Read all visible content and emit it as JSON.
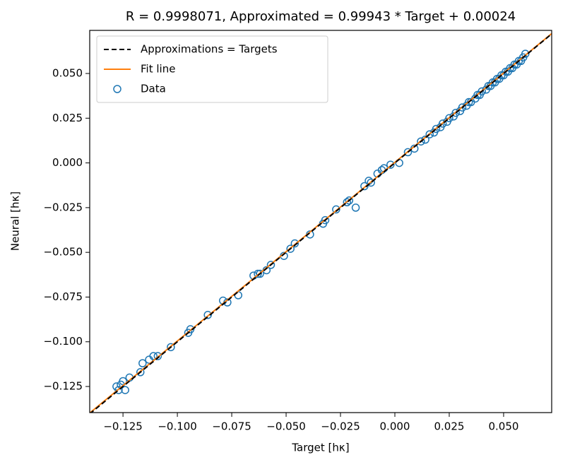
{
  "chart_data": {
    "type": "scatter",
    "title": "R = 0.9998071, Approximated = 0.99943 * Target + 0.00024",
    "xlabel": "Target [hκ]",
    "ylabel": "Neural [hκ]",
    "xlim": [
      -0.1403,
      0.0721
    ],
    "ylim": [
      -0.1396,
      0.0741
    ],
    "xticks": [
      {
        "value": -0.125,
        "label": "−0.125"
      },
      {
        "value": -0.1,
        "label": "−0.100"
      },
      {
        "value": -0.075,
        "label": "−0.075"
      },
      {
        "value": -0.05,
        "label": "−0.050"
      },
      {
        "value": -0.025,
        "label": "−0.025"
      },
      {
        "value": 0,
        "label": "0.000"
      },
      {
        "value": 0.025,
        "label": "0.025"
      },
      {
        "value": 0.05,
        "label": "0.050"
      }
    ],
    "yticks": [
      {
        "value": -0.125,
        "label": "−0.125"
      },
      {
        "value": -0.1,
        "label": "−0.100"
      },
      {
        "value": -0.075,
        "label": "−0.075"
      },
      {
        "value": -0.05,
        "label": "−0.050"
      },
      {
        "value": -0.025,
        "label": "−0.025"
      },
      {
        "value": 0,
        "label": "0.000"
      },
      {
        "value": 0.025,
        "label": "0.025"
      },
      {
        "value": 0.05,
        "label": "0.050"
      }
    ],
    "legend": "upper left",
    "series": [
      {
        "name": "Approximations = Targets",
        "color": "#000000",
        "mode": "line",
        "dash": true,
        "x": [
          -0.1403,
          0.0721
        ],
        "values": [
          -0.1403,
          0.0721
        ]
      },
      {
        "name": "Fit line",
        "color": "#ff7f0e",
        "mode": "line",
        "dash": false,
        "x": [
          -0.1403,
          0.0721
        ],
        "values": [
          -0.1398,
          0.0723
        ]
      },
      {
        "name": "Data",
        "color": "#1f77b4",
        "mode": "markers",
        "x": [
          -0.128,
          -0.127,
          -0.126,
          -0.125,
          -0.124,
          -0.122,
          -0.117,
          -0.116,
          -0.113,
          -0.111,
          -0.109,
          -0.103,
          -0.095,
          -0.094,
          -0.086,
          -0.079,
          -0.077,
          -0.072,
          -0.065,
          -0.063,
          -0.062,
          -0.059,
          -0.057,
          -0.051,
          -0.048,
          -0.046,
          -0.039,
          -0.033,
          -0.032,
          -0.027,
          -0.022,
          -0.021,
          -0.018,
          -0.014,
          -0.012,
          -0.011,
          -0.008,
          -0.006,
          -0.005,
          -0.002,
          0.002,
          0.006,
          0.009,
          0.012,
          0.014,
          0.016,
          0.018,
          0.019,
          0.021,
          0.022,
          0.024,
          0.025,
          0.027,
          0.028,
          0.03,
          0.031,
          0.033,
          0.034,
          0.035,
          0.037,
          0.038,
          0.039,
          0.04,
          0.042,
          0.043,
          0.044,
          0.045,
          0.046,
          0.047,
          0.048,
          0.049,
          0.05,
          0.051,
          0.052,
          0.053,
          0.054,
          0.055,
          0.056,
          0.057,
          0.058,
          0.059,
          0.06
        ],
        "values": [
          -0.125,
          -0.127,
          -0.124,
          -0.122,
          -0.127,
          -0.12,
          -0.117,
          -0.112,
          -0.11,
          -0.108,
          -0.108,
          -0.103,
          -0.095,
          -0.093,
          -0.085,
          -0.077,
          -0.078,
          -0.074,
          -0.063,
          -0.062,
          -0.062,
          -0.06,
          -0.057,
          -0.052,
          -0.048,
          -0.045,
          -0.04,
          -0.034,
          -0.032,
          -0.026,
          -0.022,
          -0.021,
          -0.025,
          -0.013,
          -0.01,
          -0.011,
          -0.006,
          -0.004,
          -0.003,
          -0.001,
          0.0,
          0.006,
          0.008,
          0.012,
          0.013,
          0.016,
          0.017,
          0.019,
          0.02,
          0.022,
          0.023,
          0.025,
          0.026,
          0.028,
          0.029,
          0.031,
          0.032,
          0.034,
          0.034,
          0.036,
          0.038,
          0.038,
          0.04,
          0.041,
          0.043,
          0.043,
          0.045,
          0.045,
          0.047,
          0.047,
          0.049,
          0.049,
          0.051,
          0.051,
          0.053,
          0.053,
          0.055,
          0.055,
          0.057,
          0.057,
          0.059,
          0.061
        ]
      }
    ]
  }
}
